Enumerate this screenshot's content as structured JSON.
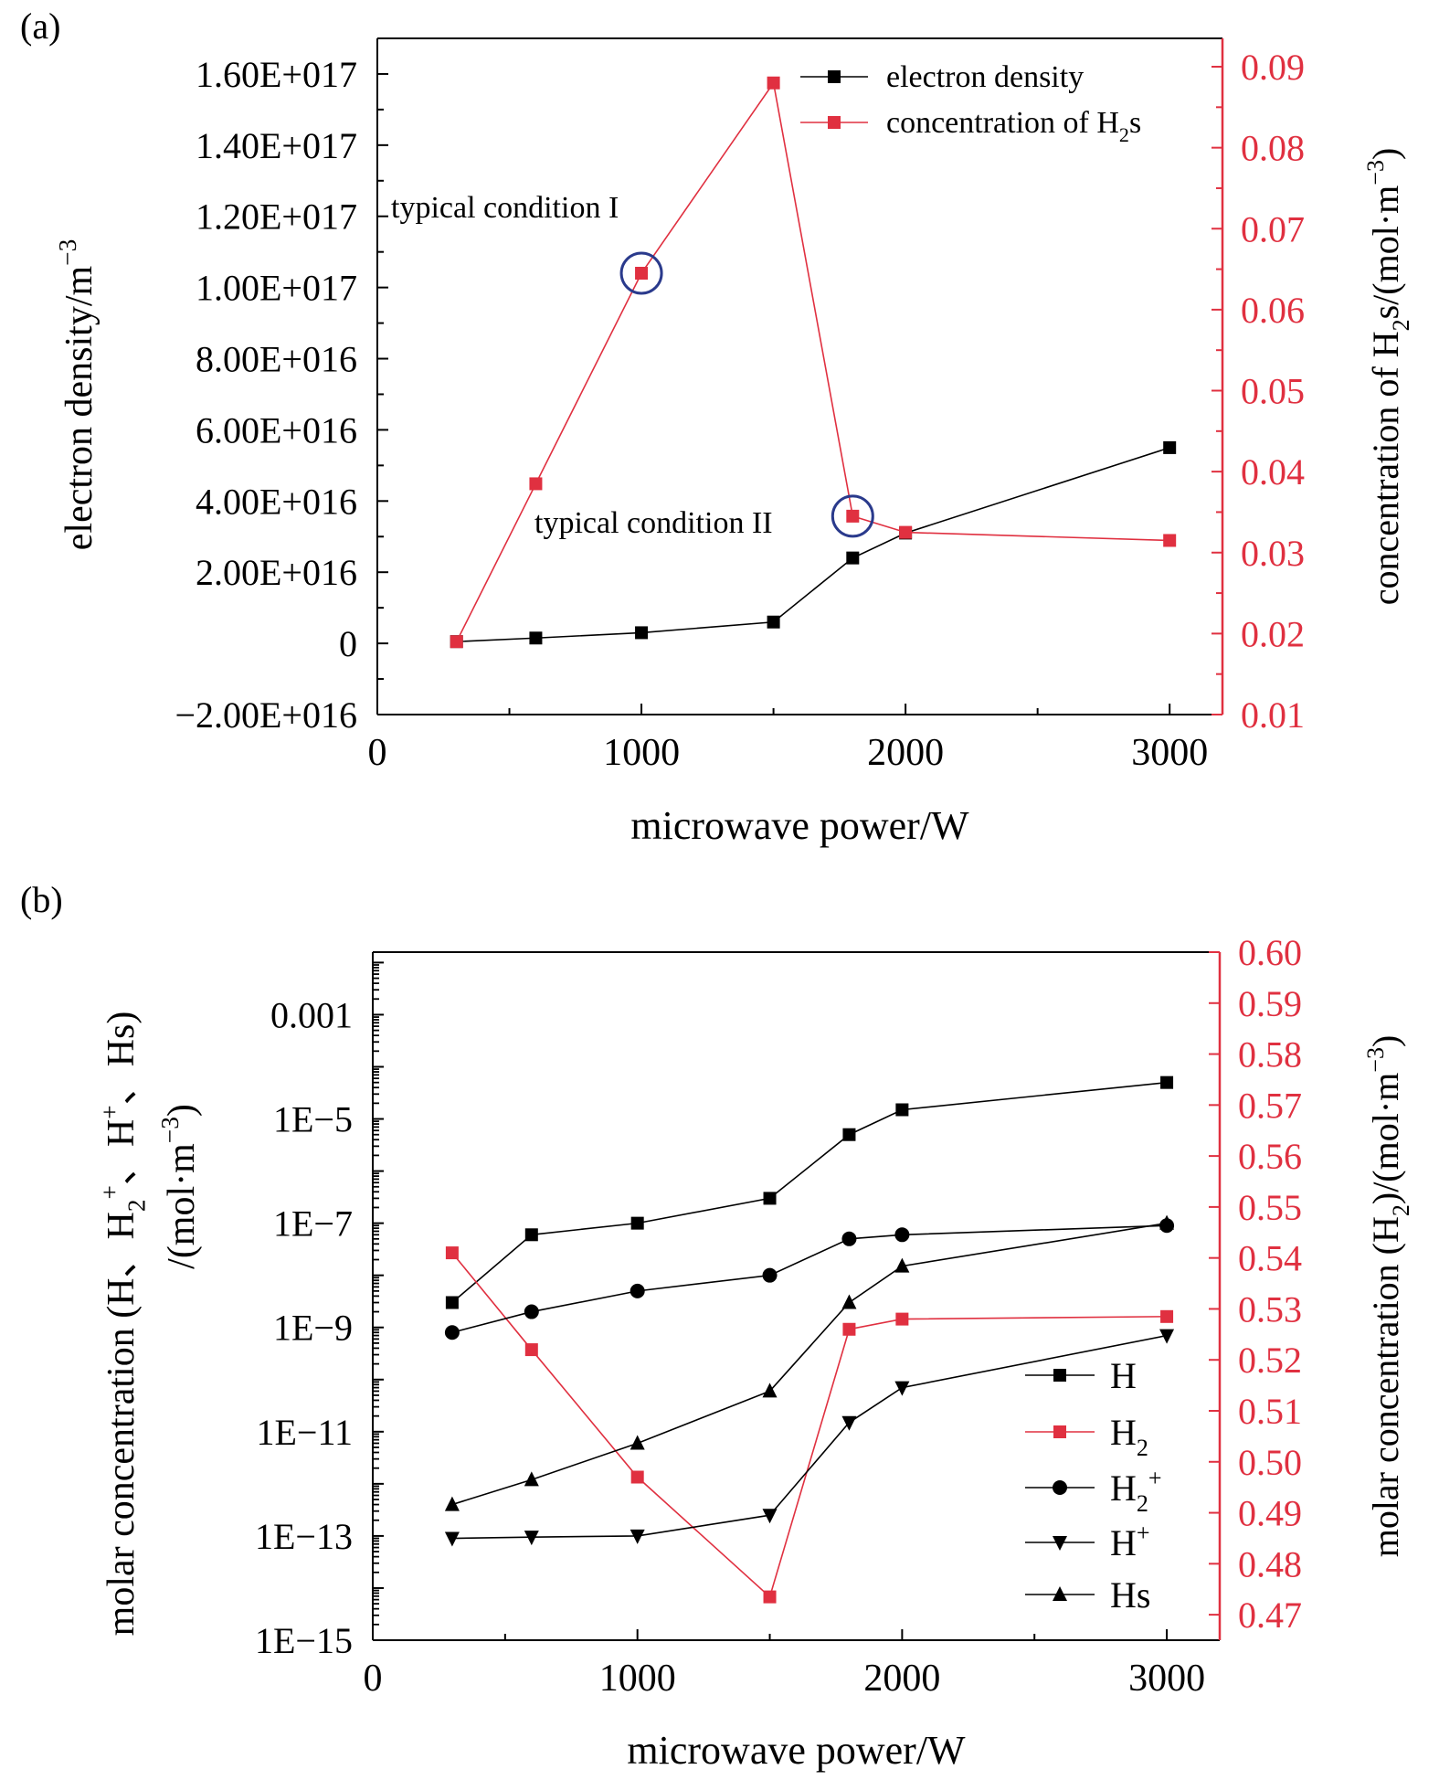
{
  "chart_data": [
    {
      "panel_label": "(a)",
      "type": "line",
      "xlabel": "microwave power/W",
      "ylabel_left": "electron density/m",
      "ylabel_left_sup": "−3",
      "ylabel_right_pre": "concentration of H",
      "ylabel_right_sub": "2",
      "ylabel_right_post": "s/(mol·m",
      "ylabel_right_sup": "−3",
      "ylabel_right_end": ")",
      "xlim": [
        0,
        3200
      ],
      "ylim_left": [
        -2e+16,
        1.7e+17
      ],
      "ylim_right": [
        0.01,
        0.0935
      ],
      "x_ticks": [
        "0",
        "1000",
        "2000",
        "3000"
      ],
      "left_ticks": [
        {
          "v": -2e+16,
          "label": "−2.00E+016"
        },
        {
          "v": 0,
          "label": "0"
        },
        {
          "v": 2e+16,
          "label": "2.00E+016"
        },
        {
          "v": 4e+16,
          "label": "4.00E+016"
        },
        {
          "v": 6e+16,
          "label": "6.00E+016"
        },
        {
          "v": 8e+16,
          "label": "8.00E+016"
        },
        {
          "v": 1e+17,
          "label": "1.00E+017"
        },
        {
          "v": 1.2e+17,
          "label": "1.20E+017"
        },
        {
          "v": 1.4e+17,
          "label": "1.40E+017"
        },
        {
          "v": 1.6e+17,
          "label": "1.60E+017"
        }
      ],
      "right_ticks": [
        "0.01",
        "0.02",
        "0.03",
        "0.04",
        "0.05",
        "0.06",
        "0.07",
        "0.08",
        "0.09"
      ],
      "series": [
        {
          "name": "electron density",
          "axis": "left",
          "color": "#000000",
          "marker": "square",
          "x": [
            300,
            600,
            1000,
            1500,
            1800,
            2000,
            3000
          ],
          "y": [
            500000000000000.0,
            1500000000000000.0,
            3000000000000000.0,
            6000000000000000.0,
            2.4e+16,
            3.1e+16,
            5.5e+16
          ]
        },
        {
          "name": "concentration of H",
          "name_sub": "2",
          "name_post": "s",
          "axis": "right",
          "color": "#e03040",
          "marker": "square",
          "x": [
            300,
            600,
            1000,
            1500,
            1800,
            2000,
            3000
          ],
          "y": [
            0.019,
            0.0385,
            0.0645,
            0.088,
            0.0345,
            0.0325,
            0.0315
          ]
        }
      ],
      "annotations": [
        {
          "text": "typical condition I",
          "x": 1000,
          "y": 0.0645
        },
        {
          "text": "typical condition II",
          "x": 1800,
          "y": 0.0345
        }
      ]
    },
    {
      "panel_label": "(b)",
      "type": "line",
      "xlabel": "microwave power/W",
      "ylabel_left_line1": "molar concentration (H、H",
      "ylabel_left_line1_sub": "2",
      "ylabel_left_line1_sup": "+",
      "ylabel_left_line1_mid": "、H",
      "ylabel_left_line1_sup2": "+",
      "ylabel_left_line1_end": "、Hs)",
      "ylabel_left_line2": "/(mol·m",
      "ylabel_left_line2_sup": "−3",
      "ylabel_left_line2_end": ")",
      "ylabel_right_pre": "molar concentration (H",
      "ylabel_right_sub": "2",
      "ylabel_right_post": ")/(mol·m",
      "ylabel_right_sup": "−3",
      "ylabel_right_end": ")",
      "xlim": [
        0,
        3200
      ],
      "ylim_left_log10": [
        -15,
        -1.8
      ],
      "ylim_right": [
        0.465,
        0.6
      ],
      "x_ticks": [
        "0",
        "1000",
        "2000",
        "3000"
      ],
      "left_ticks": [
        {
          "exp": -3,
          "label": "0.001"
        },
        {
          "exp": -5,
          "label": "1E−5"
        },
        {
          "exp": -7,
          "label": "1E−7"
        },
        {
          "exp": -9,
          "label": "1E−9"
        },
        {
          "exp": -11,
          "label": "1E−11"
        },
        {
          "exp": -13,
          "label": "1E−13"
        },
        {
          "exp": -15,
          "label": "1E−15"
        }
      ],
      "right_ticks": [
        "0.47",
        "0.48",
        "0.49",
        "0.50",
        "0.51",
        "0.52",
        "0.53",
        "0.54",
        "0.55",
        "0.56",
        "0.57",
        "0.58",
        "0.59",
        "0.60"
      ],
      "series": [
        {
          "name": "H",
          "axis": "left",
          "color": "#000000",
          "marker": "square",
          "x": [
            300,
            600,
            1000,
            1500,
            1800,
            2000,
            3000
          ],
          "y": [
            3e-09,
            6e-08,
            1e-07,
            3e-07,
            5e-06,
            1.5e-05,
            5e-05
          ]
        },
        {
          "name": "H",
          "name_sub": "2",
          "axis": "right",
          "color": "#e03040",
          "marker": "square",
          "x": [
            300,
            600,
            1000,
            1500,
            1800,
            2000,
            3000
          ],
          "y": [
            0.541,
            0.522,
            0.497,
            0.4735,
            0.526,
            0.528,
            0.5285
          ]
        },
        {
          "name": "H",
          "name_sub": "2",
          "name_sup": "+",
          "axis": "left",
          "color": "#000000",
          "marker": "circle",
          "x": [
            300,
            600,
            1000,
            1500,
            1800,
            2000,
            3000
          ],
          "y": [
            8e-10,
            2e-09,
            5e-09,
            1e-08,
            5e-08,
            6e-08,
            9e-08
          ]
        },
        {
          "name": "H",
          "name_sup": "+",
          "axis": "left",
          "color": "#000000",
          "marker": "triangle-down",
          "x": [
            300,
            600,
            1000,
            1500,
            1800,
            2000,
            3000
          ],
          "y": [
            9e-14,
            9.5e-14,
            1e-13,
            2.5e-13,
            1.5e-11,
            7e-11,
            7e-10
          ]
        },
        {
          "name": "Hs",
          "axis": "left",
          "color": "#000000",
          "marker": "triangle-up",
          "x": [
            300,
            600,
            1000,
            1500,
            1800,
            2000,
            3000
          ],
          "y": [
            4e-13,
            1.2e-12,
            6e-12,
            6e-11,
            3e-09,
            1.5e-08,
            1e-07
          ]
        }
      ]
    }
  ]
}
